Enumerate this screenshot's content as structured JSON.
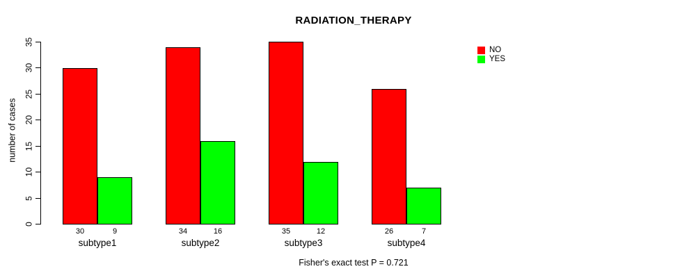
{
  "chart_data": {
    "type": "bar",
    "title": "RADIATION_THERAPY",
    "xlabel": "",
    "ylabel": "number of cases",
    "categories": [
      "subtype1",
      "subtype2",
      "subtype3",
      "subtype4"
    ],
    "series": [
      {
        "name": "NO",
        "color": "#ff0000",
        "values": [
          30,
          34,
          35,
          26
        ]
      },
      {
        "name": "YES",
        "color": "#00ff00",
        "values": [
          9,
          16,
          12,
          7
        ]
      }
    ],
    "show_bar_value_labels": true,
    "ylim": [
      0,
      35
    ],
    "yticks": [
      0,
      5,
      10,
      15,
      20,
      25,
      30,
      35
    ],
    "grid": false,
    "legend_position": "top-right",
    "annotation": "Fisher's exact test P = 0.721"
  },
  "legend": {
    "items": [
      {
        "label": "NO",
        "color": "#ff0000"
      },
      {
        "label": "YES",
        "color": "#00ff00"
      }
    ]
  }
}
